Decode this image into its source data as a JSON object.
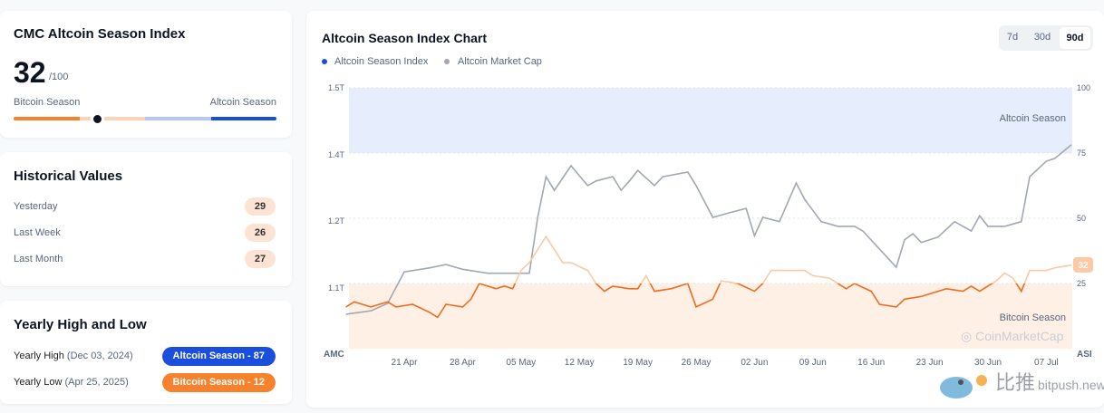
{
  "index_card": {
    "title": "CMC Altcoin Season Index",
    "value": "32",
    "max": "/100",
    "left_label": "Bitcoin Season",
    "right_label": "Altcoin Season",
    "level_percent": 32,
    "colors": {
      "bitcoin": "#f7812d",
      "bitcoin_light": "#fdd3b5",
      "altcoin_light": "#b8c8f5",
      "altcoin": "#1a4fdd"
    }
  },
  "historical": {
    "title": "Historical Values",
    "rows": [
      {
        "label": "Yesterday",
        "value": "29"
      },
      {
        "label": "Last Week",
        "value": "26"
      },
      {
        "label": "Last Month",
        "value": "27"
      }
    ]
  },
  "yearly": {
    "title": "Yearly High and Low",
    "high_label": "Yearly High",
    "high_date": "(Dec 03, 2024)",
    "high_badge": "Altcoin Season - 87",
    "low_label": "Yearly Low",
    "low_date": "(Apr 25, 2025)",
    "low_badge": "Bitcoin Season - 12"
  },
  "chart_card": {
    "title": "Altcoin Season Index Chart",
    "timeframes": [
      "7d",
      "30d",
      "90d"
    ],
    "active_timeframe": "90d"
  },
  "watermark": {
    "chart_logo": "CoinMarketCap",
    "site_cn": "比推",
    "site": "bitpush.news"
  },
  "chart_data": {
    "type": "line",
    "title": "Altcoin Season Index Chart",
    "legend": [
      "Altcoin Season Index",
      "Altcoin Market Cap"
    ],
    "legend_placement": "top-left",
    "left_axis": {
      "label": "AMC",
      "ticks": [
        "1.5T",
        "1.4T",
        "1.2T",
        "1.1T"
      ],
      "tick_values": [
        1.5,
        1.4,
        1.2,
        1.1
      ]
    },
    "right_axis": {
      "label": "ASI",
      "ticks": [
        "100",
        "75",
        "50",
        "25"
      ],
      "tick_values": [
        100,
        75,
        50,
        25
      ],
      "range": [
        0,
        100
      ]
    },
    "x_ticks": [
      "21 Apr",
      "28 Apr",
      "05 May",
      "12 May",
      "19 May",
      "26 May",
      "02 Jun",
      "09 Jun",
      "16 Jun",
      "23 Jun",
      "30 Jun",
      "07 Jul"
    ],
    "bands": [
      {
        "label": "Altcoin Season",
        "from": 75,
        "to": 100,
        "color": "#e6edfc"
      },
      {
        "label": "Bitcoin Season",
        "from": 0,
        "to": 25,
        "color": "#fff0e6"
      }
    ],
    "current_label": "32",
    "colors": {
      "asi": "#f26b1d",
      "asi_light": "#fbc9a4",
      "amc": "#a1a7b3"
    },
    "series": [
      {
        "name": "Altcoin Season Index",
        "points": [
          [
            "2025-04-14",
            16
          ],
          [
            "2025-04-15",
            18
          ],
          [
            "2025-04-17",
            16
          ],
          [
            "2025-04-19",
            18
          ],
          [
            "2025-04-20",
            16
          ],
          [
            "2025-04-22",
            17
          ],
          [
            "2025-04-24",
            14
          ],
          [
            "2025-04-25",
            12
          ],
          [
            "2025-04-26",
            17
          ],
          [
            "2025-04-28",
            16
          ],
          [
            "2025-04-29",
            19
          ],
          [
            "2025-04-30",
            25
          ],
          [
            "2025-05-02",
            23
          ],
          [
            "2025-05-03",
            24
          ],
          [
            "2025-05-04",
            23
          ],
          [
            "2025-05-05",
            30
          ],
          [
            "2025-05-06",
            33
          ],
          [
            "2025-05-08",
            43
          ],
          [
            "2025-05-09",
            38
          ],
          [
            "2025-05-10",
            33
          ],
          [
            "2025-05-11",
            33
          ],
          [
            "2025-05-13",
            30
          ],
          [
            "2025-05-14",
            25
          ],
          [
            "2025-05-15",
            22
          ],
          [
            "2025-05-16",
            24
          ],
          [
            "2025-05-18",
            23
          ],
          [
            "2025-05-19",
            23
          ],
          [
            "2025-05-20",
            28
          ],
          [
            "2025-05-21",
            22
          ],
          [
            "2025-05-23",
            23
          ],
          [
            "2025-05-25",
            25
          ],
          [
            "2025-05-26",
            16
          ],
          [
            "2025-05-28",
            19
          ],
          [
            "2025-05-29",
            26
          ],
          [
            "2025-05-31",
            25
          ],
          [
            "2025-06-02",
            22
          ],
          [
            "2025-06-03",
            25
          ],
          [
            "2025-06-04",
            30
          ],
          [
            "2025-06-06",
            30
          ],
          [
            "2025-06-08",
            30
          ],
          [
            "2025-06-09",
            28
          ],
          [
            "2025-06-11",
            27
          ],
          [
            "2025-06-13",
            23
          ],
          [
            "2025-06-14",
            25
          ],
          [
            "2025-06-16",
            22
          ],
          [
            "2025-06-17",
            17
          ],
          [
            "2025-06-19",
            16
          ],
          [
            "2025-06-20",
            19
          ],
          [
            "2025-06-22",
            20
          ],
          [
            "2025-06-23",
            21
          ],
          [
            "2025-06-25",
            23
          ],
          [
            "2025-06-27",
            22
          ],
          [
            "2025-06-28",
            24
          ],
          [
            "2025-06-29",
            22
          ],
          [
            "2025-07-01",
            26
          ],
          [
            "2025-07-02",
            29
          ],
          [
            "2025-07-03",
            27
          ],
          [
            "2025-07-04",
            22
          ],
          [
            "2025-07-05",
            30
          ],
          [
            "2025-07-07",
            30
          ],
          [
            "2025-07-08",
            31
          ],
          [
            "2025-07-10",
            32
          ]
        ]
      },
      {
        "name": "Altcoin Market Cap",
        "unit": "T USD",
        "points": [
          [
            "2025-04-14",
            1.061
          ],
          [
            "2025-04-17",
            1.066
          ],
          [
            "2025-04-19",
            1.077
          ],
          [
            "2025-04-21",
            1.124
          ],
          [
            "2025-04-24",
            1.13
          ],
          [
            "2025-04-26",
            1.135
          ],
          [
            "2025-04-28",
            1.128
          ],
          [
            "2025-05-01",
            1.122
          ],
          [
            "2025-05-04",
            1.122
          ],
          [
            "2025-05-06",
            1.122
          ],
          [
            "2025-05-07",
            1.211
          ],
          [
            "2025-05-08",
            1.334
          ],
          [
            "2025-05-09",
            1.293
          ],
          [
            "2025-05-11",
            1.367
          ],
          [
            "2025-05-13",
            1.307
          ],
          [
            "2025-05-14",
            1.321
          ],
          [
            "2025-05-16",
            1.334
          ],
          [
            "2025-05-17",
            1.293
          ],
          [
            "2025-05-18",
            1.321
          ],
          [
            "2025-05-19",
            1.353
          ],
          [
            "2025-05-21",
            1.307
          ],
          [
            "2025-05-22",
            1.334
          ],
          [
            "2025-05-25",
            1.348
          ],
          [
            "2025-05-26",
            1.307
          ],
          [
            "2025-05-28",
            1.211
          ],
          [
            "2025-05-30",
            1.225
          ],
          [
            "2025-06-01",
            1.238
          ],
          [
            "2025-06-02",
            1.178
          ],
          [
            "2025-06-03",
            1.211
          ],
          [
            "2025-06-05",
            1.199
          ],
          [
            "2025-06-07",
            1.315
          ],
          [
            "2025-06-08",
            1.266
          ],
          [
            "2025-06-10",
            1.199
          ],
          [
            "2025-06-12",
            1.192
          ],
          [
            "2025-06-14",
            1.192
          ],
          [
            "2025-06-15",
            1.185
          ],
          [
            "2025-06-17",
            1.158
          ],
          [
            "2025-06-19",
            1.131
          ],
          [
            "2025-06-20",
            1.172
          ],
          [
            "2025-06-21",
            1.181
          ],
          [
            "2025-06-22",
            1.168
          ],
          [
            "2025-06-24",
            1.176
          ],
          [
            "2025-06-26",
            1.199
          ],
          [
            "2025-06-28",
            1.185
          ],
          [
            "2025-06-29",
            1.216
          ],
          [
            "2025-06-30",
            1.192
          ],
          [
            "2025-07-02",
            1.192
          ],
          [
            "2025-07-04",
            1.199
          ],
          [
            "2025-07-05",
            1.334
          ],
          [
            "2025-07-07",
            1.381
          ],
          [
            "2025-07-08",
            1.389
          ],
          [
            "2025-07-10",
            1.415
          ]
        ]
      }
    ]
  }
}
